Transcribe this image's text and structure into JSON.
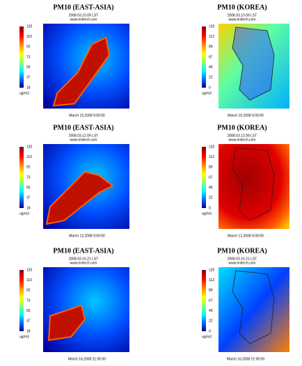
{
  "panels": [
    {
      "title": "PM10 (EAST-ASIA)",
      "time": "2008.03.10.09 LST",
      "site": "www.enitech.com",
      "footer": "March 10,2008 9:00:00",
      "ticks": [
        120,
        110,
        92,
        73,
        55,
        37,
        18
      ],
      "unit": "ug/m3"
    },
    {
      "title": "PM10 (KOREA)",
      "time": "2008.03.10.09 LST",
      "site": "www.enitech.com",
      "footer": "March 10,2008 9:00:00",
      "ticks": [
        120,
        112,
        89,
        67,
        45,
        22,
        0
      ],
      "unit": "ug/m3"
    },
    {
      "title": "PM10 (EAST-ASIA)",
      "time": "2008.03.12.09 LST",
      "site": "www.enitech.com",
      "footer": "March 12,2008 9:00:00",
      "ticks": [
        120,
        110,
        92,
        73,
        55,
        37,
        18
      ],
      "unit": "ug/m3"
    },
    {
      "title": "PM10 (KOREA)",
      "time": "2008.03.12.09 LST",
      "site": "www.enitech.com",
      "footer": "March 12,2008 9:00:00",
      "ticks": [
        120,
        112,
        89,
        67,
        45,
        22,
        0
      ],
      "unit": "ug/m3"
    },
    {
      "title": "PM10 (EAST-ASIA)",
      "time": "2008.03.16.21 LST",
      "site": "www.enitech.com",
      "footer": "March 16,2008 21:00:00",
      "ticks": [
        120,
        110,
        92,
        73,
        55,
        37,
        18
      ],
      "unit": "ug/m3"
    },
    {
      "title": "PM10 (KOREA)",
      "time": "2008.03.16.21 LST",
      "site": "www.enitech.com",
      "footer": "March 16,2008 21:00:00",
      "ticks": [
        120,
        112,
        89,
        67,
        45,
        22,
        0
      ],
      "unit": "ug/m3"
    }
  ]
}
